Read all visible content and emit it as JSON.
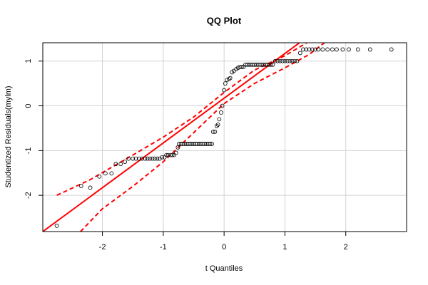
{
  "chart_data": {
    "type": "scatter",
    "title": "QQ Plot",
    "xlabel": "t Quantiles",
    "ylabel": "Studentized Residuals(mylm)",
    "xlim": [
      -2.98,
      3.0
    ],
    "ylim": [
      -2.81,
      1.41
    ],
    "xticks": [
      -2,
      -1,
      0,
      1,
      2
    ],
    "yticks": [
      -2,
      -1,
      0,
      1
    ],
    "grid": true,
    "point_color": "#000000",
    "x": [
      -2.75,
      -2.35,
      -2.2,
      -2.05,
      -1.95,
      -1.85,
      -1.78,
      -1.7,
      -1.63,
      -1.57,
      -1.5,
      -1.45,
      -1.4,
      -1.35,
      -1.3,
      -1.26,
      -1.22,
      -1.18,
      -1.14,
      -1.1,
      -1.06,
      -1.02,
      -0.98,
      -0.95,
      -0.92,
      -0.88,
      -0.85,
      -0.82,
      -0.79,
      -0.76,
      -0.74,
      -0.71,
      -0.68,
      -0.65,
      -0.62,
      -0.59,
      -0.56,
      -0.53,
      -0.5,
      -0.47,
      -0.44,
      -0.41,
      -0.38,
      -0.35,
      -0.32,
      -0.29,
      -0.26,
      -0.23,
      -0.2,
      -0.18,
      -0.15,
      -0.12,
      -0.1,
      -0.08,
      -0.05,
      -0.03,
      0,
      0.02,
      0.05,
      0.08,
      0.1,
      0.13,
      0.16,
      0.2,
      0.23,
      0.26,
      0.29,
      0.32,
      0.35,
      0.38,
      0.41,
      0.44,
      0.47,
      0.5,
      0.53,
      0.56,
      0.59,
      0.62,
      0.65,
      0.68,
      0.71,
      0.74,
      0.77,
      0.8,
      0.84,
      0.88,
      0.92,
      0.96,
      1,
      1.04,
      1.08,
      1.12,
      1.16,
      1.2,
      1.25,
      1.3,
      1.35,
      1.4,
      1.45,
      1.5,
      1.55,
      1.62,
      1.7,
      1.78,
      1.85,
      1.95,
      2.05,
      2.2,
      2.4,
      2.75
    ],
    "y": [
      -2.68,
      -1.79,
      -1.83,
      -1.58,
      -1.51,
      -1.51,
      -1.3,
      -1.3,
      -1.25,
      -1.18,
      -1.18,
      -1.18,
      -1.18,
      -1.18,
      -1.18,
      -1.18,
      -1.18,
      -1.18,
      -1.18,
      -1.18,
      -1.18,
      -1.15,
      -1.15,
      -1.1,
      -1.1,
      -1.1,
      -1.1,
      -1.1,
      -1.05,
      -0.93,
      -0.85,
      -0.85,
      -0.85,
      -0.85,
      -0.85,
      -0.85,
      -0.85,
      -0.85,
      -0.85,
      -0.85,
      -0.85,
      -0.85,
      -0.85,
      -0.85,
      -0.85,
      -0.85,
      -0.85,
      -0.85,
      -0.85,
      -0.58,
      -0.58,
      -0.45,
      -0.42,
      -0.3,
      -0.15,
      0.0,
      0.35,
      0.5,
      0.58,
      0.6,
      0.62,
      0.75,
      0.78,
      0.82,
      0.85,
      0.87,
      0.87,
      0.87,
      0.92,
      0.92,
      0.92,
      0.92,
      0.92,
      0.92,
      0.92,
      0.92,
      0.92,
      0.92,
      0.92,
      0.92,
      0.92,
      0.92,
      0.92,
      0.92,
      1.0,
      1.0,
      1.0,
      1.0,
      1.0,
      1.0,
      1.0,
      1.0,
      1.0,
      1.0,
      1.18,
      1.26,
      1.26,
      1.26,
      1.26,
      1.26,
      1.26,
      1.26,
      1.26,
      1.26,
      1.26,
      1.26,
      1.26,
      1.26,
      1.26,
      1.26
    ],
    "lines": [
      {
        "color": "#ff0000",
        "dashed": false,
        "x": [
          -2.98,
          1.24
        ],
        "y": [
          -2.81,
          1.41
        ]
      },
      {
        "color": "#ff0000",
        "dashed": true,
        "x": [
          -2.75,
          -2.2,
          -1.5,
          -1,
          -0.5,
          0,
          0.5,
          1,
          1.36
        ],
        "y": [
          -2.0,
          -1.65,
          -1.1,
          -0.7,
          -0.25,
          0.3,
          0.8,
          1.12,
          1.41
        ]
      },
      {
        "color": "#ff0000",
        "dashed": true,
        "x": [
          -2.36,
          -2,
          -1.5,
          -1,
          -0.5,
          0,
          0.5,
          1,
          1.4,
          1.65
        ],
        "y": [
          -2.81,
          -2.3,
          -1.8,
          -1.25,
          -0.6,
          0.05,
          0.5,
          0.85,
          1.15,
          1.41
        ]
      }
    ]
  }
}
